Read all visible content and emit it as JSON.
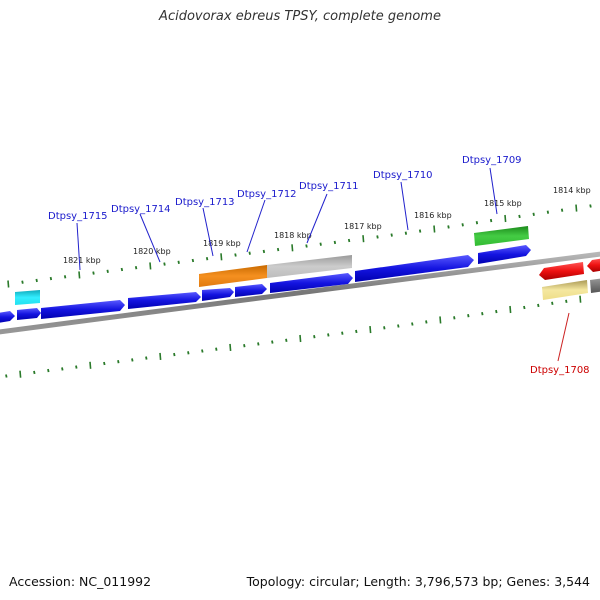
{
  "title": "Acidovorax ebreus TPSY, complete genome",
  "footer": {
    "accession": "Accession: NC_011992",
    "topology": "Topology: circular; Length: 3,796,573 bp; Genes: 3,544"
  },
  "colors": {
    "label_blue": "#1a1acc",
    "label_red": "#cc0000",
    "backbone": "#888888",
    "tick_green": "#2a7a2a",
    "cds_blue": "#1a1ae6",
    "cds_orange": "#f0880a",
    "cds_grey": "#bbbbbb",
    "cds_green": "#33bb33",
    "cds_cyan": "#22e0ee",
    "cds_red": "#ee1111",
    "cds_khaki": "#eedd88",
    "cds_darkgrey": "#777777"
  },
  "scale_labels": [
    "1821 kbp",
    "1820 kbp",
    "1819 kbp",
    "1818 kbp",
    "1817 kbp",
    "1816 kbp",
    "1815 kbp",
    "1814 kbp"
  ],
  "gene_labels": [
    {
      "text": "Dtpsy_1715",
      "strand": "forward"
    },
    {
      "text": "Dtpsy_1714",
      "strand": "forward"
    },
    {
      "text": "Dtpsy_1713",
      "strand": "forward"
    },
    {
      "text": "Dtpsy_1712",
      "strand": "forward"
    },
    {
      "text": "Dtpsy_1711",
      "strand": "forward"
    },
    {
      "text": "Dtpsy_1710",
      "strand": "forward"
    },
    {
      "text": "Dtpsy_1709",
      "strand": "forward"
    },
    {
      "text": "Dtpsy_1708",
      "strand": "reverse"
    }
  ]
}
